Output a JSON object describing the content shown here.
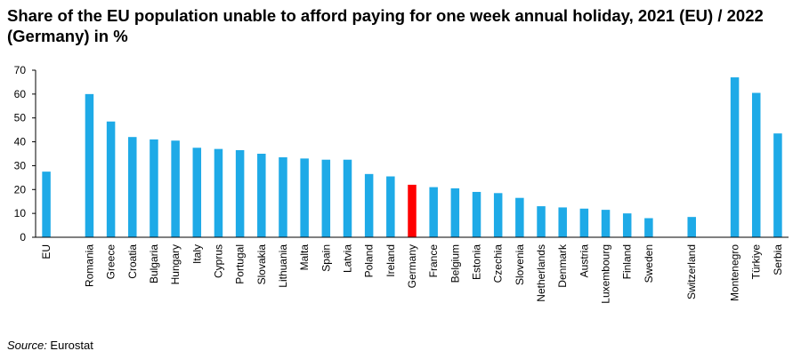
{
  "title": "Share of the EU population unable to afford paying for one week annual holiday, 2021 (EU) / 2022 (Germany) in %",
  "source_label": "Source:",
  "source_text": " Eurostat",
  "colors": {
    "bar": "#1eaae7",
    "highlight": "#ff0000",
    "axis": "#000000"
  },
  "chart_data": {
    "type": "bar",
    "title": "Share of the EU population unable to afford paying for one week annual holiday, 2021 (EU) / 2022 (Germany) in %",
    "xlabel": "",
    "ylabel": "",
    "ylim": [
      0,
      70
    ],
    "yticks": [
      0,
      10,
      20,
      30,
      40,
      50,
      60,
      70
    ],
    "grid": false,
    "highlight": "Germany",
    "categories": [
      "EU",
      "",
      "Romania",
      "Greece",
      "Croatia",
      "Bulgaria",
      "Hungary",
      "Italy",
      "Cyprus",
      "Portugal",
      "Slovakia",
      "Lithuania",
      "Malta",
      "Spain",
      "Latvia",
      "Poland",
      "Ireland",
      "Germany",
      "France",
      "Belgium",
      "Estonia",
      "Czechia",
      "Slovenia",
      "Netherlands",
      "Denmark",
      "Austria",
      "Luxembourg",
      "Finland",
      "Sweden",
      "",
      "Switzerland",
      "",
      "Montenegro",
      "Türkiye",
      "Serbia"
    ],
    "values": [
      27.5,
      null,
      60,
      48.5,
      42,
      41,
      40.5,
      37.5,
      37,
      36.5,
      35,
      33.5,
      33,
      32.5,
      32.5,
      26.5,
      25.5,
      22,
      21,
      20.5,
      19,
      18.5,
      16.5,
      13,
      12.5,
      12,
      11.5,
      10,
      8,
      null,
      8.5,
      null,
      67,
      60.5,
      43.5
    ]
  }
}
